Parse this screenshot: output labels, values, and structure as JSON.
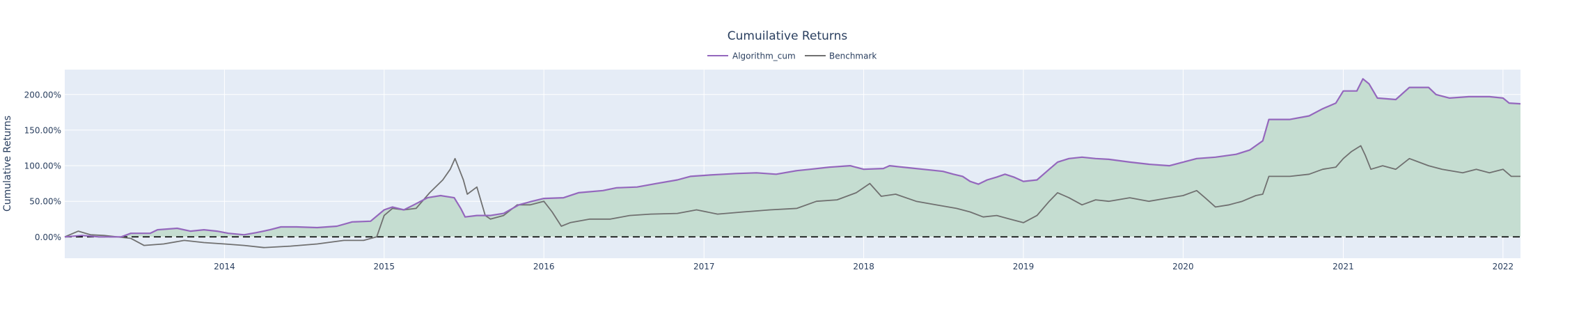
{
  "chart_data": {
    "type": "area",
    "title": "Cumuilative Returns",
    "xlabel": "",
    "ylabel": "Cumulative Returns",
    "x_range": [
      "2013-01-01",
      "2022-02-10"
    ],
    "ylim": [
      -0.3,
      2.35
    ],
    "y_ticks": [
      0,
      0.5,
      1.0,
      1.5,
      2.0
    ],
    "y_tick_labels": [
      "0.00%",
      "50.00%",
      "100.00%",
      "150.00%",
      "200.00%"
    ],
    "x_ticks": [
      "2014-01-01",
      "2015-01-01",
      "2016-01-01",
      "2017-01-01",
      "2018-01-01",
      "2019-01-01",
      "2020-01-01",
      "2021-01-01",
      "2022-01-01"
    ],
    "x_tick_labels": [
      "2014",
      "2015",
      "2016",
      "2017",
      "2018",
      "2019",
      "2020",
      "2021",
      "2022"
    ],
    "grid": true,
    "legend_position": "top-center",
    "zero_line": "dashed",
    "colors": {
      "plot_background": "#e5ecf6",
      "grid": "#ffffff",
      "fill": "#c5ddd1",
      "text": "#2a3f5f",
      "zero_line": "#000000"
    },
    "series": [
      {
        "name": "Algorithm_cum",
        "color": "#9467bd",
        "points": [
          [
            "2013-01-01",
            0.0
          ],
          [
            "2013-02-10",
            0.02
          ],
          [
            "2013-03-20",
            0.0
          ],
          [
            "2013-05-10",
            0.0
          ],
          [
            "2013-06-01",
            0.05
          ],
          [
            "2013-07-15",
            0.05
          ],
          [
            "2013-08-01",
            0.1
          ],
          [
            "2013-09-15",
            0.12
          ],
          [
            "2013-10-15",
            0.08
          ],
          [
            "2013-11-15",
            0.1
          ],
          [
            "2013-12-15",
            0.08
          ],
          [
            "2014-01-10",
            0.05
          ],
          [
            "2014-02-15",
            0.03
          ],
          [
            "2014-03-15",
            0.06
          ],
          [
            "2014-04-15",
            0.1
          ],
          [
            "2014-05-10",
            0.14
          ],
          [
            "2014-06-15",
            0.14
          ],
          [
            "2014-08-01",
            0.13
          ],
          [
            "2014-09-15",
            0.15
          ],
          [
            "2014-10-20",
            0.21
          ],
          [
            "2014-12-01",
            0.22
          ],
          [
            "2015-01-01",
            0.38
          ],
          [
            "2015-01-20",
            0.42
          ],
          [
            "2015-02-15",
            0.38
          ],
          [
            "2015-03-10",
            0.45
          ],
          [
            "2015-04-10",
            0.55
          ],
          [
            "2015-05-10",
            0.58
          ],
          [
            "2015-06-10",
            0.55
          ],
          [
            "2015-06-25",
            0.4
          ],
          [
            "2015-07-05",
            0.28
          ],
          [
            "2015-08-01",
            0.3
          ],
          [
            "2015-09-01",
            0.3
          ],
          [
            "2015-10-01",
            0.33
          ],
          [
            "2015-11-05",
            0.45
          ],
          [
            "2015-12-05",
            0.5
          ],
          [
            "2016-01-01",
            0.54
          ],
          [
            "2016-02-15",
            0.55
          ],
          [
            "2016-03-20",
            0.62
          ],
          [
            "2016-05-15",
            0.65
          ],
          [
            "2016-06-15",
            0.69
          ],
          [
            "2016-08-01",
            0.7
          ],
          [
            "2016-09-15",
            0.75
          ],
          [
            "2016-11-01",
            0.8
          ],
          [
            "2016-12-01",
            0.85
          ],
          [
            "2017-01-15",
            0.87
          ],
          [
            "2017-02-15",
            0.88
          ],
          [
            "2017-03-15",
            0.89
          ],
          [
            "2017-05-01",
            0.9
          ],
          [
            "2017-06-15",
            0.88
          ],
          [
            "2017-08-01",
            0.93
          ],
          [
            "2017-09-01",
            0.95
          ],
          [
            "2017-10-15",
            0.98
          ],
          [
            "2017-12-01",
            1.0
          ],
          [
            "2018-01-01",
            0.95
          ],
          [
            "2018-02-15",
            0.96
          ],
          [
            "2018-03-01",
            1.0
          ],
          [
            "2018-04-15",
            0.97
          ],
          [
            "2018-06-01",
            0.94
          ],
          [
            "2018-07-01",
            0.92
          ],
          [
            "2018-07-25",
            0.88
          ],
          [
            "2018-08-15",
            0.85
          ],
          [
            "2018-09-01",
            0.78
          ],
          [
            "2018-09-20",
            0.74
          ],
          [
            "2018-10-10",
            0.8
          ],
          [
            "2018-11-01",
            0.84
          ],
          [
            "2018-11-20",
            0.88
          ],
          [
            "2018-12-10",
            0.84
          ],
          [
            "2019-01-01",
            0.78
          ],
          [
            "2019-02-01",
            0.8
          ],
          [
            "2019-03-01",
            0.95
          ],
          [
            "2019-03-20",
            1.05
          ],
          [
            "2019-04-15",
            1.1
          ],
          [
            "2019-05-15",
            1.12
          ],
          [
            "2019-06-15",
            1.1
          ],
          [
            "2019-07-15",
            1.09
          ],
          [
            "2019-09-01",
            1.05
          ],
          [
            "2019-10-15",
            1.02
          ],
          [
            "2019-12-01",
            1.0
          ],
          [
            "2020-01-01",
            1.05
          ],
          [
            "2020-02-01",
            1.1
          ],
          [
            "2020-03-15",
            1.12
          ],
          [
            "2020-05-01",
            1.16
          ],
          [
            "2020-06-01",
            1.22
          ],
          [
            "2020-07-01",
            1.35
          ],
          [
            "2020-07-15",
            1.65
          ],
          [
            "2020-09-01",
            1.65
          ],
          [
            "2020-10-15",
            1.7
          ],
          [
            "2020-11-15",
            1.8
          ],
          [
            "2020-12-15",
            1.88
          ],
          [
            "2021-01-01",
            2.05
          ],
          [
            "2021-02-01",
            2.05
          ],
          [
            "2021-02-15",
            2.22
          ],
          [
            "2021-03-01",
            2.15
          ],
          [
            "2021-03-20",
            1.95
          ],
          [
            "2021-05-01",
            1.93
          ],
          [
            "2021-06-01",
            2.1
          ],
          [
            "2021-07-15",
            2.1
          ],
          [
            "2021-08-01",
            2.0
          ],
          [
            "2021-09-01",
            1.95
          ],
          [
            "2021-10-15",
            1.97
          ],
          [
            "2021-12-01",
            1.97
          ],
          [
            "2022-01-01",
            1.95
          ],
          [
            "2022-01-15",
            1.88
          ],
          [
            "2022-02-10",
            1.87
          ]
        ]
      },
      {
        "name": "Benchmark",
        "color": "#707070",
        "points": [
          [
            "2013-01-01",
            0.0
          ],
          [
            "2013-02-01",
            0.08
          ],
          [
            "2013-03-01",
            0.03
          ],
          [
            "2013-04-01",
            0.02
          ],
          [
            "2013-05-01",
            0.0
          ],
          [
            "2013-06-01",
            -0.02
          ],
          [
            "2013-07-01",
            -0.12
          ],
          [
            "2013-08-15",
            -0.1
          ],
          [
            "2013-10-01",
            -0.05
          ],
          [
            "2013-11-15",
            -0.08
          ],
          [
            "2014-01-01",
            -0.1
          ],
          [
            "2014-02-15",
            -0.12
          ],
          [
            "2014-04-01",
            -0.15
          ],
          [
            "2014-06-01",
            -0.13
          ],
          [
            "2014-08-01",
            -0.1
          ],
          [
            "2014-10-01",
            -0.05
          ],
          [
            "2014-11-15",
            -0.05
          ],
          [
            "2014-12-15",
            0.0
          ],
          [
            "2015-01-01",
            0.3
          ],
          [
            "2015-01-20",
            0.4
          ],
          [
            "2015-02-15",
            0.38
          ],
          [
            "2015-03-15",
            0.4
          ],
          [
            "2015-04-15",
            0.62
          ],
          [
            "2015-05-15",
            0.8
          ],
          [
            "2015-06-01",
            0.95
          ],
          [
            "2015-06-12",
            1.1
          ],
          [
            "2015-07-01",
            0.8
          ],
          [
            "2015-07-10",
            0.6
          ],
          [
            "2015-08-01",
            0.7
          ],
          [
            "2015-08-20",
            0.3
          ],
          [
            "2015-09-01",
            0.25
          ],
          [
            "2015-10-01",
            0.3
          ],
          [
            "2015-11-01",
            0.45
          ],
          [
            "2015-12-01",
            0.45
          ],
          [
            "2016-01-01",
            0.5
          ],
          [
            "2016-01-20",
            0.35
          ],
          [
            "2016-02-10",
            0.15
          ],
          [
            "2016-03-01",
            0.2
          ],
          [
            "2016-04-15",
            0.25
          ],
          [
            "2016-06-01",
            0.25
          ],
          [
            "2016-07-15",
            0.3
          ],
          [
            "2016-09-01",
            0.32
          ],
          [
            "2016-11-01",
            0.33
          ],
          [
            "2016-12-15",
            0.38
          ],
          [
            "2017-02-01",
            0.32
          ],
          [
            "2017-04-01",
            0.35
          ],
          [
            "2017-06-01",
            0.38
          ],
          [
            "2017-08-01",
            0.4
          ],
          [
            "2017-09-15",
            0.5
          ],
          [
            "2017-11-01",
            0.52
          ],
          [
            "2017-12-15",
            0.62
          ],
          [
            "2018-01-15",
            0.75
          ],
          [
            "2018-02-10",
            0.57
          ],
          [
            "2018-03-15",
            0.6
          ],
          [
            "2018-05-01",
            0.5
          ],
          [
            "2018-06-15",
            0.45
          ],
          [
            "2018-08-01",
            0.4
          ],
          [
            "2018-09-01",
            0.35
          ],
          [
            "2018-10-01",
            0.28
          ],
          [
            "2018-11-01",
            0.3
          ],
          [
            "2018-12-01",
            0.25
          ],
          [
            "2019-01-01",
            0.2
          ],
          [
            "2019-02-01",
            0.3
          ],
          [
            "2019-03-01",
            0.5
          ],
          [
            "2019-03-20",
            0.62
          ],
          [
            "2019-04-15",
            0.55
          ],
          [
            "2019-05-15",
            0.45
          ],
          [
            "2019-06-15",
            0.52
          ],
          [
            "2019-07-15",
            0.5
          ],
          [
            "2019-09-01",
            0.55
          ],
          [
            "2019-10-15",
            0.5
          ],
          [
            "2019-12-01",
            0.55
          ],
          [
            "2020-01-01",
            0.58
          ],
          [
            "2020-02-01",
            0.65
          ],
          [
            "2020-02-20",
            0.55
          ],
          [
            "2020-03-15",
            0.42
          ],
          [
            "2020-04-15",
            0.45
          ],
          [
            "2020-05-15",
            0.5
          ],
          [
            "2020-06-15",
            0.58
          ],
          [
            "2020-07-01",
            0.6
          ],
          [
            "2020-07-15",
            0.85
          ],
          [
            "2020-09-01",
            0.85
          ],
          [
            "2020-10-15",
            0.88
          ],
          [
            "2020-11-15",
            0.95
          ],
          [
            "2020-12-15",
            0.98
          ],
          [
            "2021-01-01",
            1.1
          ],
          [
            "2021-01-20",
            1.2
          ],
          [
            "2021-02-10",
            1.28
          ],
          [
            "2021-02-20",
            1.15
          ],
          [
            "2021-03-05",
            0.95
          ],
          [
            "2021-04-01",
            1.0
          ],
          [
            "2021-05-01",
            0.95
          ],
          [
            "2021-06-01",
            1.1
          ],
          [
            "2021-07-15",
            1.0
          ],
          [
            "2021-08-15",
            0.95
          ],
          [
            "2021-10-01",
            0.9
          ],
          [
            "2021-11-01",
            0.95
          ],
          [
            "2021-12-01",
            0.9
          ],
          [
            "2022-01-01",
            0.95
          ],
          [
            "2022-01-20",
            0.85
          ],
          [
            "2022-02-10",
            0.85
          ]
        ]
      }
    ]
  }
}
